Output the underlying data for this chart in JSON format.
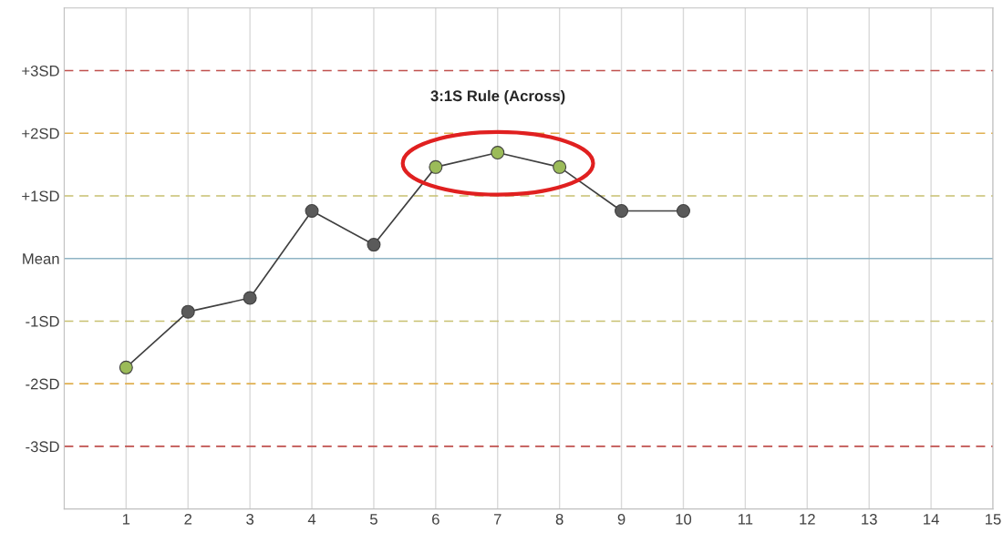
{
  "chart_data": {
    "type": "line",
    "x": [
      1,
      2,
      3,
      4,
      5,
      6,
      7,
      8,
      9,
      10
    ],
    "series": [
      {
        "color": "#404040",
        "colors": [
          "#9bbb59",
          "#5a5a5a",
          "#5a5a5a",
          "#5a5a5a",
          "#5a5a5a",
          "#9bbb59",
          "#9bbb59",
          "#9bbb59",
          "#5a5a5a",
          "#5a5a5a"
        ],
        "values": [
          -1.74,
          -0.85,
          -0.63,
          0.76,
          0.22,
          1.46,
          1.69,
          1.46,
          0.76,
          0.76
        ]
      }
    ],
    "xlim": [
      0,
      15
    ],
    "xticks": [
      1,
      2,
      3,
      4,
      5,
      6,
      7,
      8,
      9,
      10,
      11,
      12,
      13,
      14,
      15
    ],
    "ylim": [
      -4,
      4
    ],
    "yticks": [
      {
        "value": -3,
        "label": "-3SD"
      },
      {
        "value": -2,
        "label": "-2SD"
      },
      {
        "value": -1,
        "label": "-1SD"
      },
      {
        "value": 0,
        "label": "Mean"
      },
      {
        "value": 1,
        "label": "+1SD"
      },
      {
        "value": 2,
        "label": "+2SD"
      },
      {
        "value": 3,
        "label": "+3SD"
      }
    ],
    "ref_lines": [
      {
        "axis": "y",
        "value": 3,
        "color": "#c0504d",
        "line_style": "dashed"
      },
      {
        "axis": "y",
        "value": 2,
        "color": "#e0b050",
        "line_style": "dashed"
      },
      {
        "axis": "y",
        "value": 1,
        "color": "#c8c070",
        "line_style": "dashed"
      },
      {
        "axis": "y",
        "value": 0,
        "color": "#8fb4c4",
        "line_style": "solid"
      },
      {
        "axis": "y",
        "value": -1,
        "color": "#c8c070",
        "line_style": "dashed"
      },
      {
        "axis": "y",
        "value": -2,
        "color": "#e0b050",
        "line_style": "dashed"
      },
      {
        "axis": "y",
        "value": -3,
        "color": "#c0504d",
        "line_style": "dashed"
      }
    ],
    "annotations": [
      "3:1S Rule (Across)"
    ],
    "grid": "x",
    "marker": "circle",
    "line_style": "solid",
    "legend": false
  }
}
